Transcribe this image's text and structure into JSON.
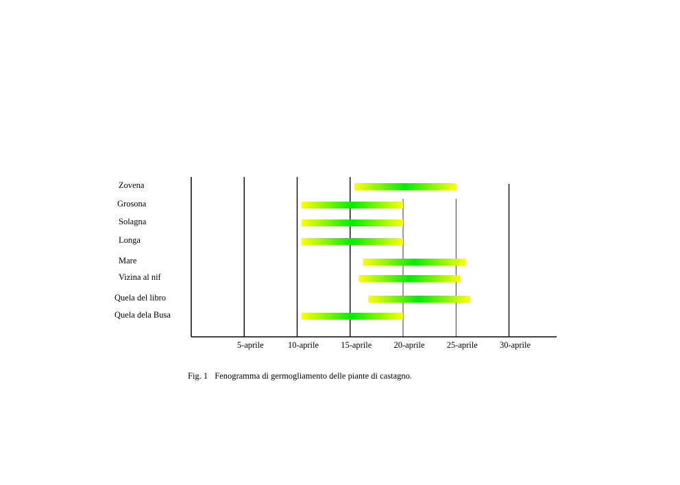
{
  "chart_data": {
    "type": "bar",
    "orientation": "horizontal",
    "title": "",
    "xlabel": "",
    "ylabel": "",
    "x_unit": "day of April",
    "xlim": [
      0,
      34
    ],
    "grid": true,
    "ticks": [
      {
        "value": 5,
        "label": "5-aprile"
      },
      {
        "value": 10,
        "label": "10-aprile"
      },
      {
        "value": 15,
        "label": "15-aprile"
      },
      {
        "value": 20,
        "label": "20-aprile"
      },
      {
        "value": 25,
        "label": "25-aprile"
      },
      {
        "value": 30,
        "label": "30-aprile"
      }
    ],
    "bar_colors": {
      "edge": "#ffff00",
      "center": "#00ee00"
    },
    "categories": [
      {
        "label": "Zovena",
        "start": 15.4,
        "end": 25.0
      },
      {
        "label": "Grosona",
        "start": 10.4,
        "end": 20.0
      },
      {
        "label": "Solagna",
        "start": 10.4,
        "end": 20.0
      },
      {
        "label": "Longa",
        "start": 10.4,
        "end": 20.0
      },
      {
        "label": "Mare",
        "start": 16.2,
        "end": 25.9
      },
      {
        "label": "Vizina al nif",
        "start": 15.8,
        "end": 25.4
      },
      {
        "label": "Quela del libro",
        "start": 16.7,
        "end": 26.3
      },
      {
        "label": "Quela dela Busa",
        "start": 10.4,
        "end": 20.0
      }
    ]
  },
  "caption": {
    "fig_number": "Fig. 1",
    "text": "Fenogramma di germogliamento delle piante di castagno."
  }
}
